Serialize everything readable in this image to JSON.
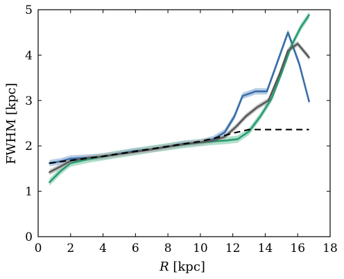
{
  "chart_data": {
    "type": "line",
    "xlabel": "R [kpc]",
    "xlabel_var": "R",
    "xlabel_unit": " [kpc]",
    "ylabel": "FWHM [kpc]",
    "xlim": [
      0,
      18
    ],
    "ylim": [
      0,
      5
    ],
    "xticks": [
      0,
      2,
      4,
      6,
      8,
      10,
      12,
      14,
      16,
      18
    ],
    "yticks": [
      0,
      1,
      2,
      3,
      4,
      5
    ],
    "grid": false,
    "series": [
      {
        "color": "#3a6ea8",
        "band_color": "#9dbbdc",
        "style": "solid",
        "band_half_width": 0.07,
        "x": [
          0.7,
          1.4,
          2.0,
          3.0,
          4.0,
          5.0,
          6.0,
          7.0,
          8.0,
          9.0,
          10.0,
          10.8,
          11.5,
          12.1,
          12.6,
          13.4,
          14.1,
          14.8,
          15.4,
          16.1,
          16.7
        ],
        "y": [
          1.62,
          1.66,
          1.72,
          1.74,
          1.77,
          1.83,
          1.89,
          1.93,
          1.99,
          2.05,
          2.08,
          2.15,
          2.3,
          2.65,
          3.1,
          3.2,
          3.2,
          3.9,
          4.5,
          3.8,
          2.98
        ]
      },
      {
        "color": "#2a9a72",
        "band_color": "#95d6ba",
        "style": "solid",
        "band_half_width": 0.08,
        "x": [
          0.7,
          1.4,
          2.0,
          3.0,
          4.0,
          5.0,
          6.0,
          7.0,
          8.0,
          9.0,
          10.0,
          10.8,
          11.6,
          12.3,
          13.0,
          13.7,
          14.4,
          15.0,
          15.6,
          16.2,
          16.7
        ],
        "y": [
          1.2,
          1.45,
          1.62,
          1.7,
          1.76,
          1.82,
          1.87,
          1.93,
          1.98,
          2.03,
          2.07,
          2.1,
          2.12,
          2.15,
          2.32,
          2.65,
          3.05,
          3.6,
          4.2,
          4.62,
          4.88
        ]
      },
      {
        "color": "#595959",
        "band_color": "#b5b5b5",
        "style": "solid",
        "band_half_width": 0.06,
        "x": [
          0.7,
          1.4,
          2.0,
          3.0,
          4.0,
          5.0,
          6.0,
          7.0,
          8.0,
          9.0,
          10.0,
          10.8,
          11.5,
          12.2,
          12.8,
          13.5,
          14.2,
          14.9,
          15.4,
          16.0,
          16.7
        ],
        "y": [
          1.42,
          1.55,
          1.67,
          1.73,
          1.77,
          1.82,
          1.87,
          1.92,
          1.98,
          2.04,
          2.08,
          2.12,
          2.2,
          2.42,
          2.65,
          2.85,
          3.0,
          3.6,
          4.1,
          4.25,
          3.95
        ]
      },
      {
        "color": "#000000",
        "style": "dashed",
        "x": [
          0.7,
          2.0,
          4.0,
          6.0,
          8.0,
          10.0,
          11.0,
          12.0,
          13.0,
          14.0,
          15.0,
          16.0,
          16.7
        ],
        "y": [
          1.62,
          1.68,
          1.77,
          1.88,
          1.99,
          2.1,
          2.18,
          2.28,
          2.36,
          2.36,
          2.36,
          2.36,
          2.36
        ]
      }
    ]
  }
}
